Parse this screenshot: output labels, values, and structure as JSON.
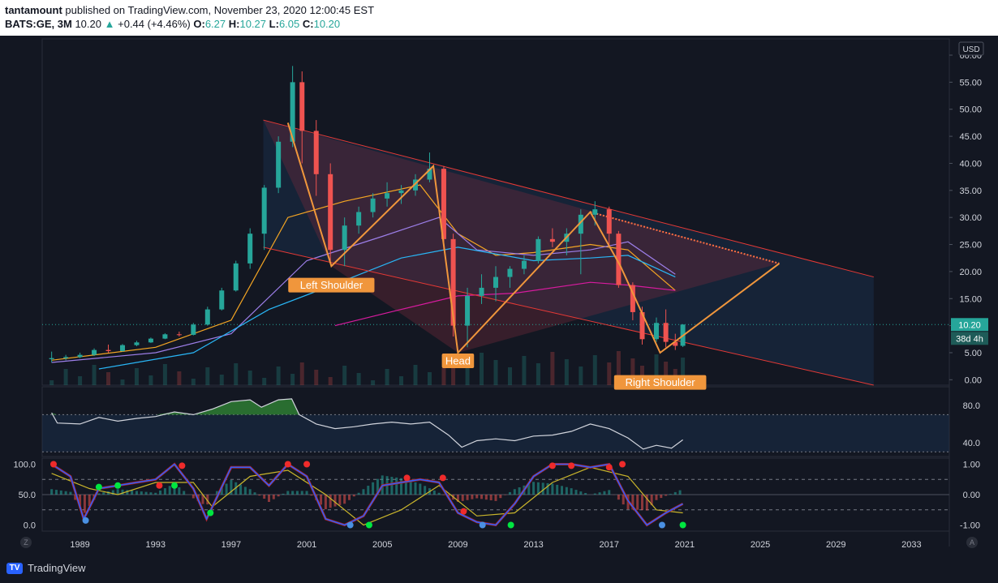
{
  "header": {
    "author": "tantamount",
    "published_text": "published on TradingView.com, November 23, 2020 12:00:45 EST",
    "symbol": "BATS:GE, 3M",
    "last": "10.20",
    "change": "+0.44 (+4.46%)",
    "open_label": "O:",
    "open": "6.27",
    "high_label": "H:",
    "high": "10.27",
    "low_label": "L:",
    "low": "6.05",
    "close_label": "C:",
    "close": "10.20"
  },
  "chart_data": {
    "type": "candlestick",
    "currency": "USD",
    "price_axis_ticks": [
      "60.00",
      "55.00",
      "50.00",
      "45.00",
      "40.00",
      "35.00",
      "30.00",
      "25.00",
      "20.00",
      "15.00",
      "10.00",
      "5.00",
      "0.00"
    ],
    "price_range": [
      -1,
      63
    ],
    "x_axis_ticks": [
      "1989",
      "1993",
      "1997",
      "2001",
      "2005",
      "2009",
      "2013",
      "2017",
      "2021",
      "2025",
      "2029",
      "2033"
    ],
    "last_price_label": "10.20",
    "countdown_label": "38d 4h",
    "annotations": [
      "Left Shoulder",
      "Head",
      "Right Shoulder"
    ],
    "price_series": [
      {
        "t": 1987.5,
        "o": 3.8,
        "h": 5.2,
        "l": 3.2,
        "c": 4.0
      },
      {
        "t": 1988.25,
        "o": 4.0,
        "h": 4.6,
        "l": 3.6,
        "c": 4.2
      },
      {
        "t": 1989,
        "o": 4.2,
        "h": 5.0,
        "l": 4.0,
        "c": 4.6
      },
      {
        "t": 1989.75,
        "o": 4.6,
        "h": 5.8,
        "l": 4.4,
        "c": 5.5
      },
      {
        "t": 1990.5,
        "o": 5.5,
        "h": 6.5,
        "l": 5.0,
        "c": 5.3
      },
      {
        "t": 1991.25,
        "o": 5.3,
        "h": 6.6,
        "l": 5.2,
        "c": 6.4
      },
      {
        "t": 1992,
        "o": 6.4,
        "h": 7.2,
        "l": 6.2,
        "c": 6.9
      },
      {
        "t": 1992.75,
        "o": 6.9,
        "h": 7.8,
        "l": 6.8,
        "c": 7.6
      },
      {
        "t": 1993.5,
        "o": 7.6,
        "h": 8.6,
        "l": 7.5,
        "c": 8.4
      },
      {
        "t": 1994.25,
        "o": 8.4,
        "h": 8.9,
        "l": 8.0,
        "c": 8.3
      },
      {
        "t": 1995,
        "o": 8.3,
        "h": 10.5,
        "l": 8.2,
        "c": 10.2
      },
      {
        "t": 1995.75,
        "o": 10.2,
        "h": 13.5,
        "l": 10.0,
        "c": 13.0
      },
      {
        "t": 1996.5,
        "o": 13.0,
        "h": 17.0,
        "l": 12.8,
        "c": 16.5
      },
      {
        "t": 1997.25,
        "o": 16.5,
        "h": 22.0,
        "l": 16.3,
        "c": 21.5
      },
      {
        "t": 1998,
        "o": 21.5,
        "h": 28.0,
        "l": 20.5,
        "c": 27.0
      },
      {
        "t": 1998.75,
        "o": 27.0,
        "h": 36.0,
        "l": 24.0,
        "c": 35.5
      },
      {
        "t": 1999.5,
        "o": 35.5,
        "h": 45.0,
        "l": 34.5,
        "c": 44.0
      },
      {
        "t": 2000.25,
        "o": 44.0,
        "h": 58.0,
        "l": 43.0,
        "c": 55.0
      },
      {
        "t": 2000.75,
        "o": 55.0,
        "h": 57.0,
        "l": 40.0,
        "c": 46.0
      },
      {
        "t": 2001.5,
        "o": 46.0,
        "h": 48.0,
        "l": 34.0,
        "c": 38.0
      },
      {
        "t": 2002.25,
        "o": 38.0,
        "h": 40.0,
        "l": 22.0,
        "c": 24.0
      },
      {
        "t": 2003,
        "o": 24.0,
        "h": 30.0,
        "l": 21.0,
        "c": 28.5
      },
      {
        "t": 2003.75,
        "o": 28.5,
        "h": 32.0,
        "l": 27.0,
        "c": 31.0
      },
      {
        "t": 2004.5,
        "o": 31.0,
        "h": 34.5,
        "l": 30.0,
        "c": 33.5
      },
      {
        "t": 2005.25,
        "o": 33.5,
        "h": 36.5,
        "l": 32.0,
        "c": 34.5
      },
      {
        "t": 2006,
        "o": 34.5,
        "h": 36.0,
        "l": 32.5,
        "c": 35.0
      },
      {
        "t": 2006.75,
        "o": 35.0,
        "h": 38.0,
        "l": 34.0,
        "c": 37.0
      },
      {
        "t": 2007.5,
        "o": 37.0,
        "h": 42.0,
        "l": 36.5,
        "c": 39.0
      },
      {
        "t": 2008.25,
        "o": 39.0,
        "h": 39.5,
        "l": 24.0,
        "c": 26.0
      },
      {
        "t": 2008.75,
        "o": 26.0,
        "h": 27.0,
        "l": 8.0,
        "c": 10.0
      },
      {
        "t": 2009.5,
        "o": 10.0,
        "h": 17.0,
        "l": 6.0,
        "c": 15.5
      },
      {
        "t": 2010.25,
        "o": 15.5,
        "h": 19.5,
        "l": 14.0,
        "c": 17.0
      },
      {
        "t": 2011,
        "o": 17.0,
        "h": 21.0,
        "l": 14.5,
        "c": 19.0
      },
      {
        "t": 2011.75,
        "o": 19.0,
        "h": 21.0,
        "l": 17.0,
        "c": 20.5
      },
      {
        "t": 2012.5,
        "o": 20.5,
        "h": 23.0,
        "l": 19.5,
        "c": 22.0
      },
      {
        "t": 2013.25,
        "o": 22.0,
        "h": 26.5,
        "l": 21.5,
        "c": 26.0
      },
      {
        "t": 2014,
        "o": 26.0,
        "h": 28.0,
        "l": 24.5,
        "c": 25.5
      },
      {
        "t": 2014.75,
        "o": 25.5,
        "h": 28.0,
        "l": 23.0,
        "c": 27.0
      },
      {
        "t": 2015.5,
        "o": 27.0,
        "h": 31.5,
        "l": 19.5,
        "c": 30.5
      },
      {
        "t": 2016.25,
        "o": 30.5,
        "h": 33.0,
        "l": 28.5,
        "c": 31.5
      },
      {
        "t": 2017,
        "o": 31.5,
        "h": 32.0,
        "l": 25.0,
        "c": 27.0
      },
      {
        "t": 2017.5,
        "o": 27.0,
        "h": 27.5,
        "l": 17.0,
        "c": 17.5
      },
      {
        "t": 2018.25,
        "o": 17.5,
        "h": 18.0,
        "l": 11.0,
        "c": 12.5
      },
      {
        "t": 2018.75,
        "o": 12.5,
        "h": 13.5,
        "l": 6.5,
        "c": 7.5
      },
      {
        "t": 2019.5,
        "o": 7.5,
        "h": 11.5,
        "l": 7.0,
        "c": 10.5
      },
      {
        "t": 2020,
        "o": 10.5,
        "h": 13.0,
        "l": 6.0,
        "c": 7.0
      },
      {
        "t": 2020.5,
        "o": 7.0,
        "h": 8.5,
        "l": 5.5,
        "c": 6.27
      },
      {
        "t": 2020.9,
        "o": 6.27,
        "h": 10.27,
        "l": 6.05,
        "c": 10.2
      }
    ],
    "moving_averages": [
      {
        "name": "ma-orange",
        "color": "#f5a623",
        "points": [
          [
            1987.5,
            3.6
          ],
          [
            1993,
            6.0
          ],
          [
            1997,
            11.0
          ],
          [
            2000,
            30.0
          ],
          [
            2003,
            33.0
          ],
          [
            2007,
            36.0
          ],
          [
            2009,
            27.0
          ],
          [
            2011,
            23.0
          ],
          [
            2013,
            23.5
          ],
          [
            2016,
            25.0
          ],
          [
            2018,
            24.0
          ],
          [
            2020.5,
            16.5
          ]
        ]
      },
      {
        "name": "ma-purple",
        "color": "#9c7ee8",
        "points": [
          [
            1987.5,
            3.2
          ],
          [
            1993,
            5.0
          ],
          [
            1997,
            8.5
          ],
          [
            2001,
            22.0
          ],
          [
            2005,
            26.5
          ],
          [
            2008,
            30.0
          ],
          [
            2010,
            24.0
          ],
          [
            2013,
            23.0
          ],
          [
            2016,
            24.0
          ],
          [
            2018,
            25.5
          ],
          [
            2020.5,
            19.5
          ]
        ]
      },
      {
        "name": "ma-blue",
        "color": "#29b6f6",
        "points": [
          [
            1990,
            2.0
          ],
          [
            1995,
            5.0
          ],
          [
            1999,
            13.0
          ],
          [
            2002,
            17.0
          ],
          [
            2006,
            22.5
          ],
          [
            2009,
            24.5
          ],
          [
            2013,
            22.0
          ],
          [
            2016,
            22.5
          ],
          [
            2018,
            23.0
          ],
          [
            2020.5,
            19.0
          ]
        ]
      },
      {
        "name": "ma-magenta",
        "color": "#d81b9f",
        "points": [
          [
            2002.5,
            10.0
          ],
          [
            2006,
            13.0
          ],
          [
            2009,
            15.5
          ],
          [
            2012,
            16.0
          ],
          [
            2016,
            18.0
          ],
          [
            2018,
            17.5
          ],
          [
            2020.5,
            16.5
          ]
        ]
      }
    ],
    "pattern_line_points": [
      [
        2000.0,
        47.5
      ],
      [
        2002.3,
        21.0
      ],
      [
        2007.7,
        39.5
      ],
      [
        2009.0,
        5.0
      ],
      [
        2016.0,
        31.0
      ],
      [
        2017.6,
        21.0
      ],
      [
        2019.7,
        5.0
      ],
      [
        2026.0,
        21.5
      ]
    ],
    "channel_upper": [
      [
        1998.7,
        48.0
      ],
      [
        2031,
        19.0
      ]
    ],
    "channel_lower": [
      [
        1998.7,
        24.5
      ],
      [
        2031,
        -1.0
      ]
    ],
    "horizontal_last_price": 10.2,
    "rsi": {
      "ticks": [
        "80.0",
        "40.0"
      ],
      "range": [
        25,
        100
      ],
      "upper_band": 70,
      "lower band": 30,
      "points": [
        [
          1987.5,
          72
        ],
        [
          1987.8,
          61
        ],
        [
          1989,
          60
        ],
        [
          1990,
          67
        ],
        [
          1991,
          63
        ],
        [
          1992,
          66
        ],
        [
          1993,
          68
        ],
        [
          1994,
          73
        ],
        [
          1995,
          70
        ],
        [
          1996,
          76
        ],
        [
          1997,
          84
        ],
        [
          1998,
          86
        ],
        [
          1998.6,
          78
        ],
        [
          1999.5,
          86
        ],
        [
          2000.2,
          87
        ],
        [
          2000.6,
          70
        ],
        [
          2001.5,
          60
        ],
        [
          2002.5,
          55
        ],
        [
          2003.5,
          57
        ],
        [
          2004.5,
          60
        ],
        [
          2005.5,
          62
        ],
        [
          2006.5,
          60
        ],
        [
          2007.5,
          62
        ],
        [
          2008.5,
          48
        ],
        [
          2009.2,
          35
        ],
        [
          2010,
          42
        ],
        [
          2011,
          44
        ],
        [
          2012,
          42
        ],
        [
          2013,
          47
        ],
        [
          2014,
          48
        ],
        [
          2015,
          52
        ],
        [
          2016,
          60
        ],
        [
          2017,
          55
        ],
        [
          2018,
          45
        ],
        [
          2018.8,
          33
        ],
        [
          2019.5,
          37
        ],
        [
          2020.3,
          34
        ],
        [
          2020.9,
          43
        ]
      ]
    },
    "oscillator": {
      "left_ticks": [
        "100.0",
        "50.0",
        "0.0"
      ],
      "right_ticks": [
        "1.00",
        "0.00",
        "-1.00"
      ],
      "range": [
        -1.2,
        1.2
      ],
      "fast_points": [
        [
          1987.5,
          1.0
        ],
        [
          1988.5,
          0.6
        ],
        [
          1989.2,
          -0.8
        ],
        [
          1990,
          0.2
        ],
        [
          1991,
          0.3
        ],
        [
          1992,
          0.4
        ],
        [
          1993,
          0.5
        ],
        [
          1994,
          1.0
        ],
        [
          1995,
          0.2
        ],
        [
          1995.7,
          -0.8
        ],
        [
          1997,
          0.9
        ],
        [
          1998,
          0.9
        ],
        [
          1999,
          0.3
        ],
        [
          2000,
          1.0
        ],
        [
          2001,
          0.6
        ],
        [
          2002,
          -0.8
        ],
        [
          2003,
          -1.0
        ],
        [
          2004,
          -0.7
        ],
        [
          2005,
          0.3
        ],
        [
          2006,
          0.4
        ],
        [
          2007,
          0.5
        ],
        [
          2008,
          0.4
        ],
        [
          2009,
          -0.6
        ],
        [
          2010,
          -0.9
        ],
        [
          2011,
          -1.0
        ],
        [
          2012,
          -0.3
        ],
        [
          2013,
          0.6
        ],
        [
          2014,
          1.0
        ],
        [
          2015,
          1.0
        ],
        [
          2016,
          0.9
        ],
        [
          2017,
          1.0
        ],
        [
          2018,
          -0.2
        ],
        [
          2019,
          -1.0
        ],
        [
          2020,
          -0.6
        ],
        [
          2020.9,
          -0.3
        ]
      ],
      "slow_points": [
        [
          1987.5,
          0.7
        ],
        [
          1989.5,
          0.2
        ],
        [
          1991,
          0.0
        ],
        [
          1993,
          0.4
        ],
        [
          1995,
          0.4
        ],
        [
          1996,
          -0.4
        ],
        [
          1998,
          0.6
        ],
        [
          2000,
          0.8
        ],
        [
          2002,
          0.0
        ],
        [
          2004,
          -1.0
        ],
        [
          2006,
          -0.5
        ],
        [
          2008,
          0.3
        ],
        [
          2010,
          -0.7
        ],
        [
          2012,
          -0.6
        ],
        [
          2014,
          0.4
        ],
        [
          2016,
          0.9
        ],
        [
          2018,
          0.6
        ],
        [
          2019.5,
          -0.5
        ],
        [
          2020.9,
          -0.6
        ]
      ],
      "markers": [
        {
          "t": 1987.6,
          "v": 1.0,
          "kind": "red"
        },
        {
          "t": 1989.3,
          "v": -0.85,
          "kind": "blue"
        },
        {
          "t": 1990,
          "v": 0.25,
          "kind": "green"
        },
        {
          "t": 1991,
          "v": 0.3,
          "kind": "green"
        },
        {
          "t": 1993.2,
          "v": 0.3,
          "kind": "red"
        },
        {
          "t": 1994,
          "v": 0.3,
          "kind": "green"
        },
        {
          "t": 1994.4,
          "v": 0.95,
          "kind": "red"
        },
        {
          "t": 1995.9,
          "v": -0.6,
          "kind": "green"
        },
        {
          "t": 2000,
          "v": 1.0,
          "kind": "red"
        },
        {
          "t": 2001,
          "v": 1.0,
          "kind": "red"
        },
        {
          "t": 2003.3,
          "v": -1.0,
          "kind": "blue"
        },
        {
          "t": 2004.3,
          "v": -1.0,
          "kind": "green"
        },
        {
          "t": 2006.3,
          "v": 0.55,
          "kind": "red"
        },
        {
          "t": 2008.2,
          "v": 0.55,
          "kind": "red"
        },
        {
          "t": 2009.3,
          "v": -0.55,
          "kind": "red"
        },
        {
          "t": 2010.3,
          "v": -1.0,
          "kind": "blue"
        },
        {
          "t": 2011.8,
          "v": -1.0,
          "kind": "green"
        },
        {
          "t": 2014,
          "v": 0.95,
          "kind": "red"
        },
        {
          "t": 2015,
          "v": 0.95,
          "kind": "red"
        },
        {
          "t": 2017,
          "v": 0.9,
          "kind": "red"
        },
        {
          "t": 2017.7,
          "v": 1.0,
          "kind": "red"
        },
        {
          "t": 2019.8,
          "v": -1.0,
          "kind": "blue"
        },
        {
          "t": 2020.9,
          "v": -1.0,
          "kind": "green"
        }
      ]
    }
  },
  "footer": {
    "brand": "TradingView",
    "left_corner": "Z",
    "right_corner": "A"
  }
}
